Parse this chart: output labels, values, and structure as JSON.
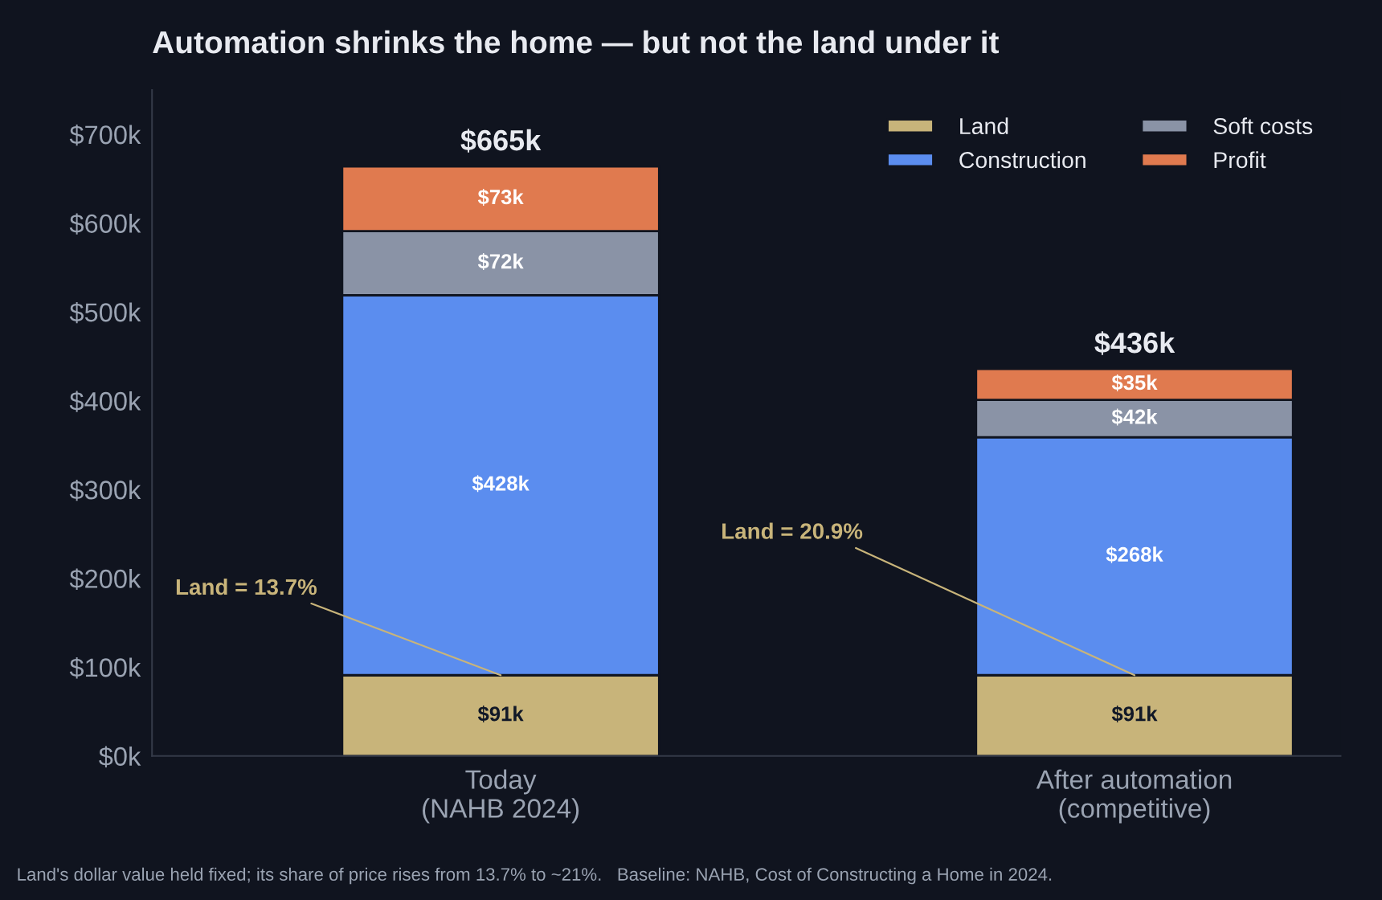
{
  "chart_data": {
    "type": "bar",
    "stacked": true,
    "title": "Automation shrinks the home — but not the land under it",
    "categories": [
      "Today\n(NAHB 2024)",
      "After automation\n(competitive)"
    ],
    "series": [
      {
        "name": "Land",
        "color": "#c8b47a",
        "values": [
          91,
          91
        ],
        "value_labels": [
          "$91k",
          "$91k"
        ]
      },
      {
        "name": "Construction",
        "color": "#5b8def",
        "values": [
          428,
          268
        ],
        "value_labels": [
          "$428k",
          "$268k"
        ]
      },
      {
        "name": "Soft costs",
        "color": "#8a93a6",
        "values": [
          72,
          42
        ],
        "value_labels": [
          "$72k",
          "$42k"
        ]
      },
      {
        "name": "Profit",
        "color": "#e07a4f",
        "values": [
          73,
          35
        ],
        "value_labels": [
          "$73k",
          "$35k"
        ]
      }
    ],
    "totals": [
      "$665k",
      "$436k"
    ],
    "ylim": [
      0,
      750
    ],
    "yticks": [
      {
        "value": 0,
        "label": "$0k"
      },
      {
        "value": 100,
        "label": "$100k"
      },
      {
        "value": 200,
        "label": "$200k"
      },
      {
        "value": 300,
        "label": "$300k"
      },
      {
        "value": 400,
        "label": "$400k"
      },
      {
        "value": 500,
        "label": "$500k"
      },
      {
        "value": 600,
        "label": "$600k"
      },
      {
        "value": 700,
        "label": "$700k"
      }
    ],
    "legend": "top right",
    "grid": false,
    "annotations": [
      {
        "text": "Land = 13.7%",
        "x": "Today\n(NAHB 2024)",
        "y": 91
      },
      {
        "text": "Land = 20.9%",
        "x": "After automation\n(competitive)",
        "y": 91
      },
      "Land's dollar value held fixed; its share of price rises from 13.7% to ~21%.   Baseline: NAHB, Cost of Constructing a Home in 2024."
    ]
  }
}
